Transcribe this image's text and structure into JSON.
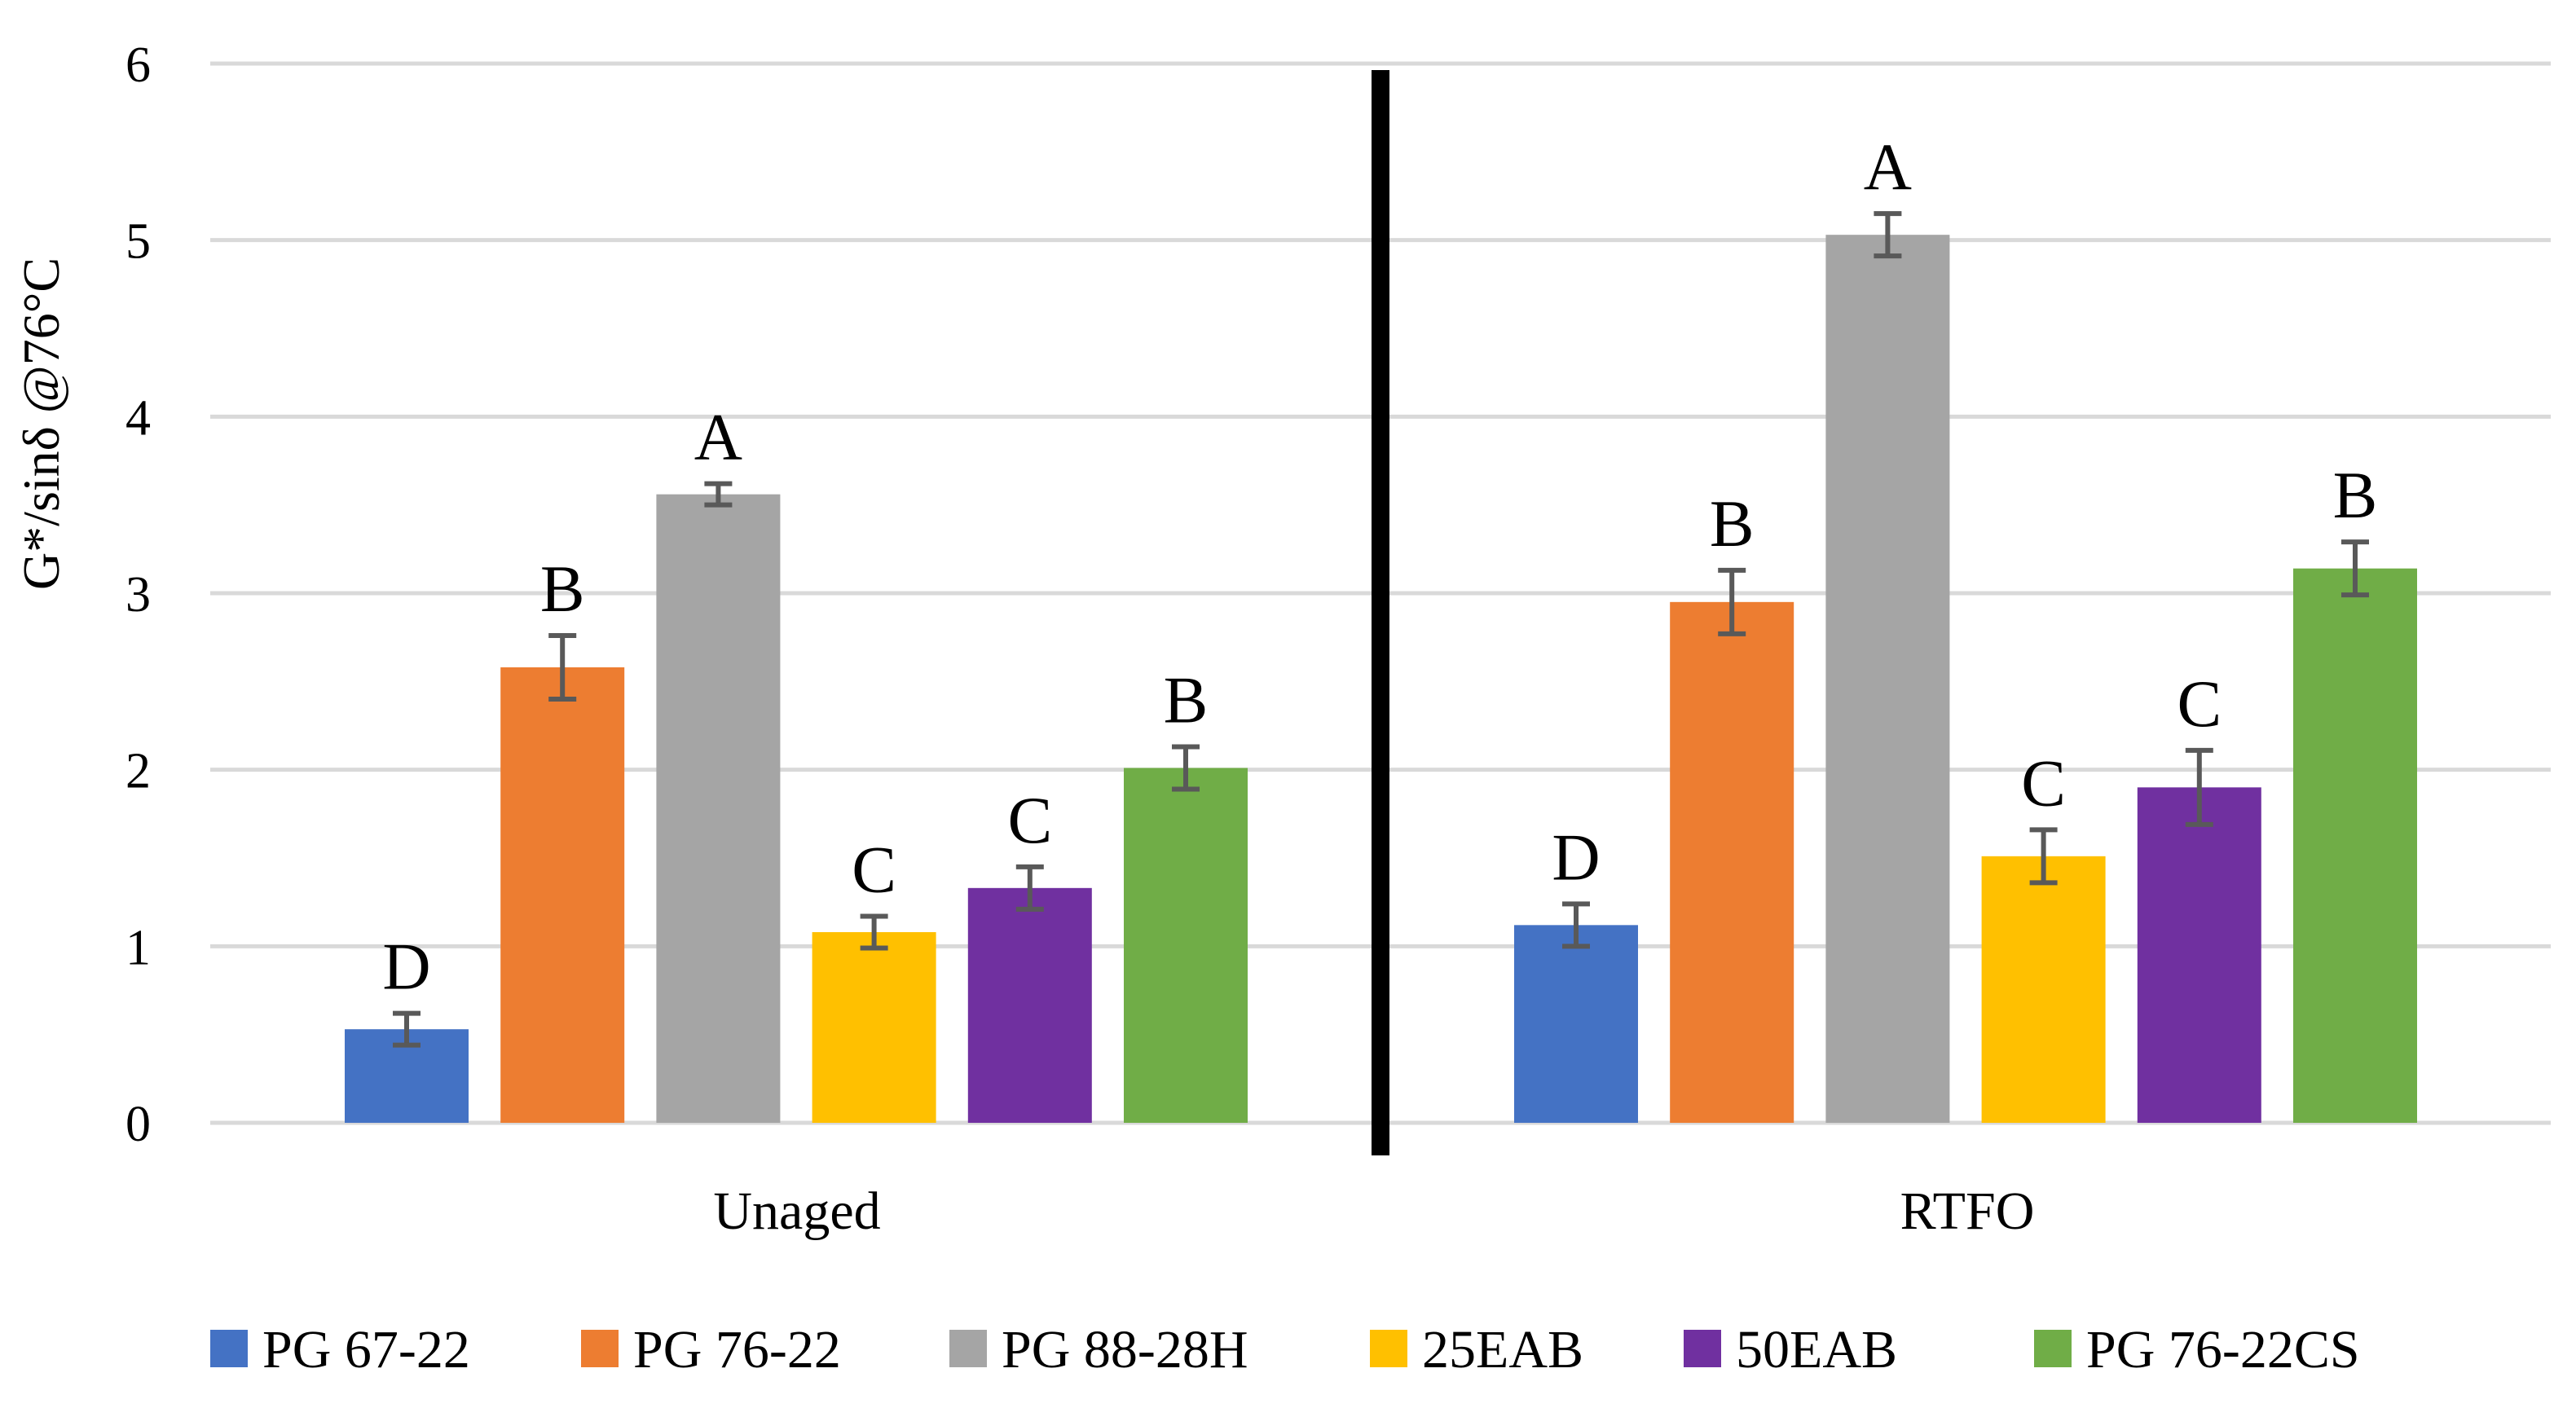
{
  "chart_data": {
    "type": "bar",
    "title": "",
    "xlabel": "",
    "ylabel": "G*/sinδ @76°C",
    "ylim": [
      0,
      6
    ],
    "yticks": [
      0,
      1,
      2,
      3,
      4,
      5,
      6
    ],
    "grid": true,
    "legend_position": "bottom",
    "groups": [
      "Unaged",
      "RTFO"
    ],
    "series": [
      {
        "name": "PG 67-22",
        "color": "#4472C4",
        "values": [
          0.53,
          1.12
        ],
        "errors": [
          0.09,
          0.12
        ],
        "letters": [
          "D",
          "D"
        ]
      },
      {
        "name": "PG 76-22",
        "color": "#ED7D31",
        "values": [
          2.58,
          2.95
        ],
        "errors": [
          0.18,
          0.18
        ],
        "letters": [
          "B",
          "B"
        ]
      },
      {
        "name": "PG 88-28H",
        "color": "#A5A5A5",
        "values": [
          3.56,
          5.03
        ],
        "errors": [
          0.06,
          0.12
        ],
        "letters": [
          "A",
          "A"
        ]
      },
      {
        "name": "25EAB",
        "color": "#FFC000",
        "values": [
          1.08,
          1.51
        ],
        "errors": [
          0.09,
          0.15
        ],
        "letters": [
          "C",
          "C"
        ]
      },
      {
        "name": "50EAB",
        "color": "#7030A0",
        "values": [
          1.33,
          1.9
        ],
        "errors": [
          0.12,
          0.21
        ],
        "letters": [
          "C",
          "C"
        ]
      },
      {
        "name": "PG 76-22CS",
        "color": "#70AD47",
        "values": [
          2.01,
          3.14
        ],
        "errors": [
          0.12,
          0.15
        ],
        "letters": [
          "B",
          "B"
        ]
      }
    ],
    "separator_color": "#000000",
    "error_bar_color": "#595959",
    "grid_color": "#D9D9D9"
  }
}
